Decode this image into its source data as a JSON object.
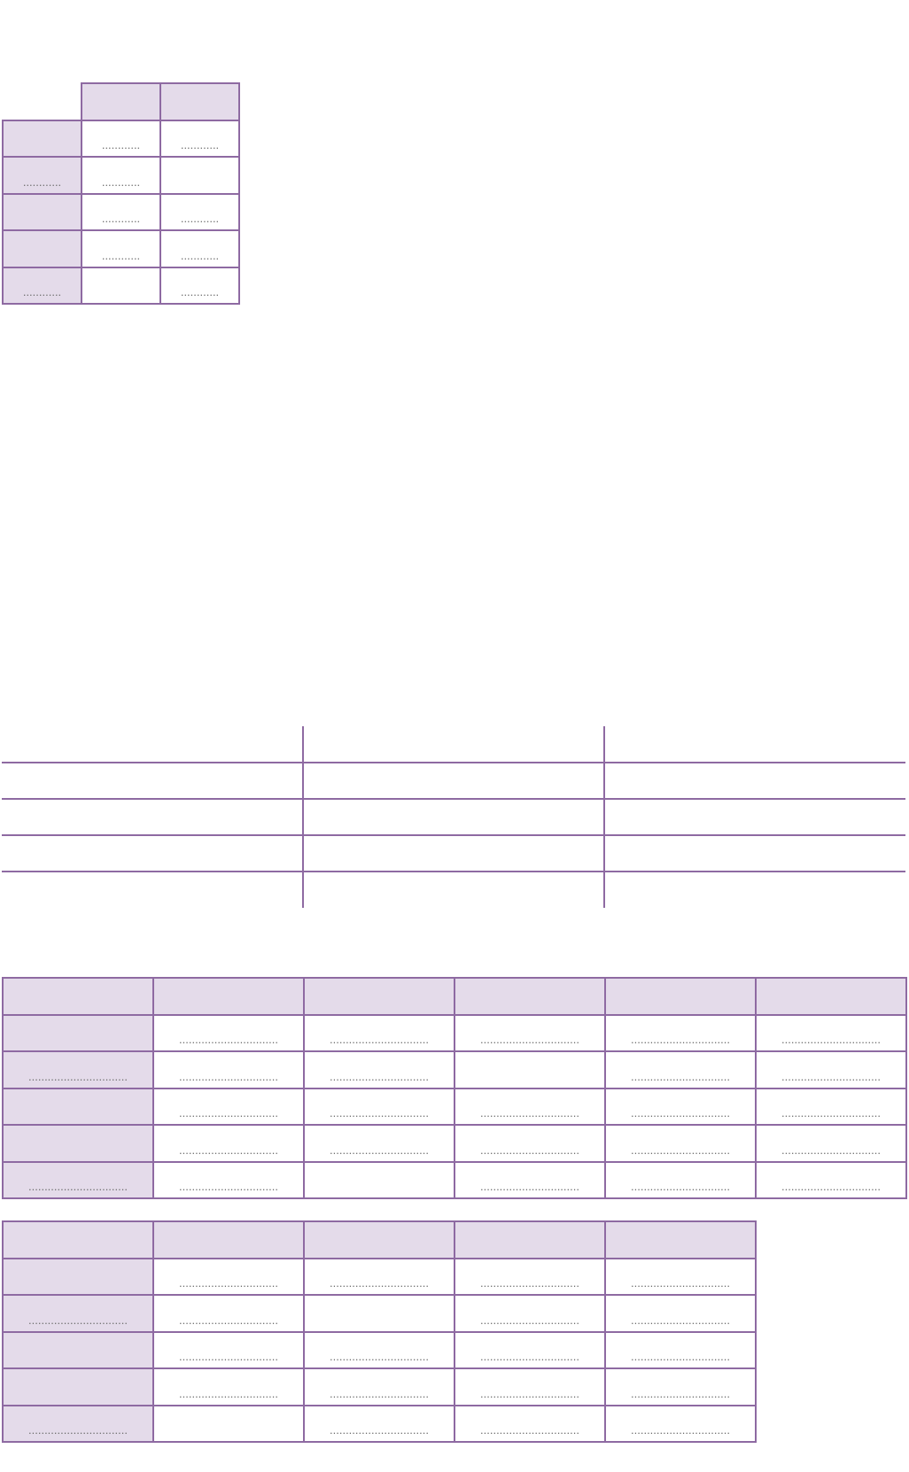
{
  "small_table": {
    "header": [
      "",
      "",
      ""
    ],
    "rows": [
      [
        "",
        "............",
        "............"
      ],
      [
        "............",
        "............",
        ""
      ],
      [
        "",
        "............",
        "............"
      ],
      [
        "",
        "............",
        "............"
      ],
      [
        "............",
        "",
        "............"
      ]
    ]
  },
  "table_six": {
    "header": [
      "",
      "",
      "",
      "",
      "",
      ""
    ],
    "rows": [
      [
        "",
        "...............................",
        "...............................",
        "...............................",
        "...............................",
        "..............................."
      ],
      [
        "...............................",
        "...............................",
        "...............................",
        "",
        "...............................",
        "..............................."
      ],
      [
        "",
        "...............................",
        "...............................",
        "...............................",
        "...............................",
        "..............................."
      ],
      [
        "",
        "...............................",
        "...............................",
        "...............................",
        "...............................",
        "..............................."
      ],
      [
        "...............................",
        "...............................",
        "",
        "...............................",
        "...............................",
        "..............................."
      ]
    ]
  },
  "table_five": {
    "header": [
      "",
      "",
      "",
      "",
      ""
    ],
    "rows": [
      [
        "",
        "...............................",
        "...............................",
        "...............................",
        "..............................."
      ],
      [
        "...............................",
        "...............................",
        "",
        "...............................",
        "..............................."
      ],
      [
        "",
        "...............................",
        "...............................",
        "...............................",
        "..............................."
      ],
      [
        "",
        "...............................",
        "...............................",
        "...............................",
        "..............................."
      ],
      [
        "...............................",
        "",
        "...............................",
        "...............................",
        "..............................."
      ]
    ]
  },
  "colors": {
    "border": "#8e6aa2",
    "header_fill": "#e4dbea",
    "dots": "#6f6f6f"
  }
}
